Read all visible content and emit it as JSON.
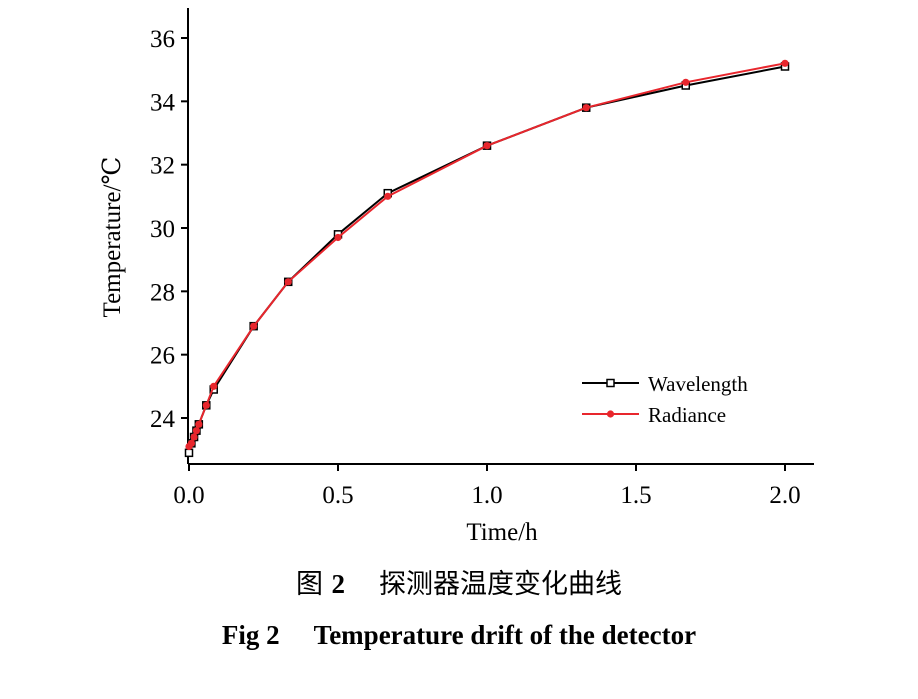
{
  "chart_data": {
    "type": "line",
    "xlabel": "Time/h",
    "ylabel": "Temperature/℃",
    "xlim": [
      0.0,
      2.1
    ],
    "ylim": [
      22.7,
      37.0
    ],
    "xticks": [
      0.0,
      0.5,
      1.0,
      1.5,
      2.0
    ],
    "xtick_labels": [
      "0.0",
      "0.5",
      "1.0",
      "1.5",
      "2.0"
    ],
    "yticks": [
      24,
      26,
      28,
      30,
      32,
      34,
      36
    ],
    "ytick_labels": [
      "24",
      "26",
      "28",
      "30",
      "32",
      "34",
      "36"
    ],
    "grid": false,
    "legend_position": "lower-right",
    "series": [
      {
        "name": "Wavelength",
        "color": "#000000",
        "marker": "square-open",
        "x": [
          0.0,
          0.008,
          0.017,
          0.025,
          0.033,
          0.058,
          0.083,
          0.217,
          0.333,
          0.5,
          0.667,
          1.0,
          1.333,
          1.667,
          2.0
        ],
        "y": [
          22.9,
          23.2,
          23.4,
          23.6,
          23.8,
          24.4,
          24.9,
          26.9,
          28.3,
          29.8,
          31.1,
          32.6,
          33.8,
          34.5,
          35.1
        ]
      },
      {
        "name": "Radiance",
        "color": "#e8262d",
        "marker": "circle-filled",
        "x": [
          0.0,
          0.008,
          0.017,
          0.025,
          0.033,
          0.058,
          0.083,
          0.217,
          0.333,
          0.5,
          0.667,
          1.0,
          1.333,
          1.667,
          2.0
        ],
        "y": [
          23.1,
          23.2,
          23.4,
          23.6,
          23.8,
          24.4,
          25.0,
          26.9,
          28.3,
          29.7,
          31.0,
          32.6,
          33.8,
          34.6,
          35.2
        ]
      }
    ]
  },
  "caption": {
    "cn_label": "图",
    "cn_number": "2",
    "cn_text": "探测器温度变化曲线",
    "en_label": "Fig 2",
    "en_text": "Temperature drift of the detector"
  }
}
